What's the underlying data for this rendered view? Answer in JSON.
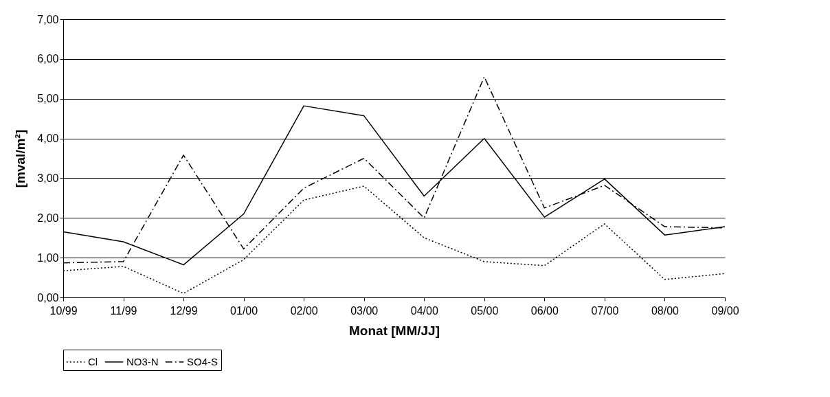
{
  "chart_data": {
    "type": "line",
    "xlabel": "Monat [MM/JJ]",
    "ylabel": "[mval/m²]",
    "categories": [
      "10/99",
      "11/99",
      "12/99",
      "01/00",
      "02/00",
      "03/00",
      "04/00",
      "05/00",
      "06/00",
      "07/00",
      "08/00",
      "09/00"
    ],
    "series": [
      {
        "name": "Cl",
        "color": "#000000",
        "line_style": "dotted",
        "values": [
          0.67,
          0.78,
          0.1,
          0.95,
          2.45,
          2.8,
          1.5,
          0.9,
          0.8,
          1.85,
          0.45,
          0.6
        ]
      },
      {
        "name": "NO3-N",
        "color": "#000000",
        "line_style": "solid",
        "values": [
          1.65,
          1.4,
          0.82,
          2.1,
          4.82,
          4.57,
          2.55,
          4.0,
          2.02,
          2.98,
          1.57,
          1.78
        ]
      },
      {
        "name": "SO4-S",
        "color": "#000000",
        "line_style": "dashed",
        "values": [
          0.87,
          0.9,
          3.58,
          1.22,
          2.75,
          3.5,
          2.0,
          5.55,
          2.25,
          2.82,
          1.78,
          1.75
        ]
      }
    ],
    "ylim": [
      0,
      7
    ],
    "yticks": [
      {
        "value": 0,
        "label": "0,00"
      },
      {
        "value": 1,
        "label": "1,00"
      },
      {
        "value": 2,
        "label": "2,00"
      },
      {
        "value": 3,
        "label": "3,00"
      },
      {
        "value": 4,
        "label": "4,00"
      },
      {
        "value": 5,
        "label": "5,00"
      },
      {
        "value": 6,
        "label": "6,00"
      },
      {
        "value": 7,
        "label": "7,00"
      }
    ],
    "grid": "y",
    "legend": "bottom",
    "marker": "none"
  }
}
